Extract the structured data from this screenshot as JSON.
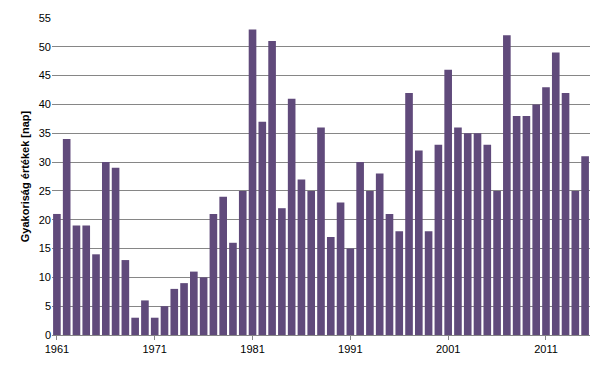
{
  "chart_data": {
    "type": "bar",
    "y_label": "Gyakoriság értékek [nap]",
    "categories": [
      "1961",
      null,
      null,
      null,
      null,
      null,
      null,
      null,
      null,
      null,
      "1971",
      null,
      null,
      null,
      null,
      null,
      null,
      null,
      null,
      null,
      "1981",
      null,
      null,
      null,
      null,
      null,
      null,
      null,
      null,
      null,
      "1991",
      null,
      null,
      null,
      null,
      null,
      null,
      null,
      null,
      null,
      "2001",
      null,
      null,
      null,
      null,
      null,
      null,
      null,
      null,
      null,
      "2011",
      null,
      null,
      null,
      null
    ],
    "values": [
      21,
      34,
      19,
      19,
      14,
      30,
      29,
      13,
      3,
      6,
      3,
      5,
      8,
      9,
      11,
      10,
      21,
      24,
      16,
      25,
      53,
      37,
      51,
      22,
      41,
      27,
      25,
      36,
      17,
      23,
      15,
      30,
      25,
      28,
      21,
      18,
      42,
      32,
      18,
      33,
      46,
      36,
      35,
      35,
      33,
      25,
      52,
      38,
      38,
      40,
      43,
      49,
      42,
      25,
      31
    ],
    "color": "#604a7b",
    "ylim": [
      0,
      55
    ],
    "yticks": [
      0,
      5,
      10,
      15,
      20,
      25,
      30,
      35,
      40,
      45,
      50,
      55
    ],
    "grid": true
  }
}
